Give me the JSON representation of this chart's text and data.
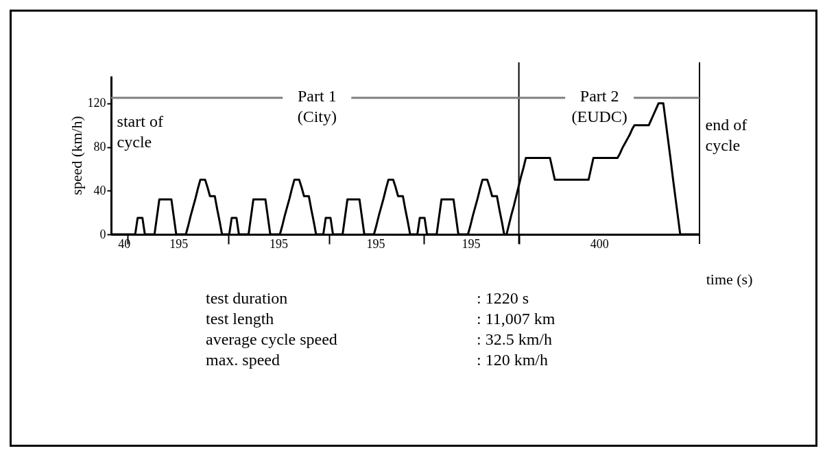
{
  "chart_data": {
    "type": "line",
    "xlabel": "time (s)",
    "ylabel": "speed (km/h)",
    "categories": [
      null,
      null,
      null,
      null,
      null,
      null,
      null,
      null,
      null,
      null,
      null,
      null,
      null,
      null,
      null,
      null,
      null,
      null,
      null,
      null,
      null,
      null,
      null,
      null,
      null,
      null,
      null,
      null,
      null,
      null,
      null,
      null,
      null,
      null,
      null,
      null,
      null,
      null,
      null,
      null,
      null,
      null,
      null,
      null,
      null,
      null,
      null,
      null,
      null,
      null,
      null,
      null,
      null,
      null,
      null,
      null,
      null,
      null,
      null,
      null,
      null,
      null,
      null,
      null,
      null,
      null,
      null,
      null,
      null,
      null,
      null,
      null,
      null,
      null,
      null,
      null,
      null,
      null,
      null,
      null,
      null,
      null,
      null,
      null,
      null,
      null,
      null,
      null,
      null,
      null,
      null,
      null,
      null,
      null,
      null,
      null,
      null,
      null,
      null,
      null,
      null,
      null,
      null,
      null,
      null,
      null,
      null,
      null,
      null,
      null,
      null,
      null,
      null,
      null,
      null,
      null,
      null,
      null,
      null,
      null,
      null,
      null,
      null,
      null,
      null,
      null,
      null,
      null,
      null,
      null,
      null,
      null,
      null,
      null,
      null,
      null,
      null,
      null,
      null,
      null,
      null,
      null,
      null,
      null,
      null,
      null,
      null,
      null,
      null,
      null,
      null,
      null,
      null,
      null,
      null,
      null,
      null,
      null,
      null,
      null,
      null,
      null,
      null,
      null,
      null,
      null,
      null,
      null,
      null,
      null,
      null,
      null,
      null,
      null,
      null,
      null,
      null,
      null,
      null,
      null,
      null,
      null,
      null,
      null,
      null,
      null,
      null,
      null,
      null,
      null,
      null,
      null,
      null,
      null,
      null,
      null,
      null,
      null,
      null,
      null,
      null,
      null,
      null,
      null,
      null,
      null,
      null,
      null,
      null,
      null,
      null,
      null,
      null,
      null,
      null,
      null,
      null,
      null,
      null,
      null,
      null,
      null,
      null,
      null,
      null,
      null,
      null,
      null,
      null,
      null,
      null,
      null,
      null,
      null,
      null,
      null,
      null,
      null,
      null,
      null,
      null,
      null,
      null,
      null,
      null
    ],
    "series": [
      {
        "color": "#000000",
        "values": [
          0,
          0,
          0,
          0,
          0,
          0,
          0,
          0,
          0,
          0,
          0,
          15,
          15,
          15,
          0,
          0,
          0,
          0,
          0,
          16,
          32,
          32,
          32,
          32,
          32,
          32,
          16,
          0,
          0,
          0,
          0,
          0,
          8,
          17,
          25,
          33,
          42,
          50,
          50,
          50,
          43,
          35,
          35,
          35,
          23,
          12,
          0,
          0,
          0,
          0,
          15,
          15,
          15,
          0,
          0,
          0,
          0,
          0,
          16,
          32,
          32,
          32,
          32,
          32,
          32,
          16,
          0,
          0,
          0,
          0,
          0,
          8,
          17,
          25,
          33,
          42,
          50,
          50,
          50,
          43,
          35,
          35,
          35,
          23,
          12,
          0,
          0,
          0,
          0,
          15,
          15,
          15,
          0,
          0,
          0,
          0,
          0,
          16,
          32,
          32,
          32,
          32,
          32,
          32,
          16,
          0,
          0,
          0,
          0,
          0,
          8,
          17,
          25,
          33,
          42,
          50,
          50,
          50,
          43,
          35,
          35,
          35,
          23,
          12,
          0,
          0,
          0,
          0,
          15,
          15,
          15,
          0,
          0,
          0,
          0,
          0,
          16,
          32,
          32,
          32,
          32,
          32,
          32,
          16,
          0,
          0,
          0,
          0,
          0,
          8,
          17,
          25,
          33,
          42,
          50,
          50,
          50,
          43,
          35,
          35,
          35,
          23,
          12,
          0,
          0,
          9,
          18,
          26,
          35,
          44,
          53,
          61,
          70,
          70,
          70,
          70,
          70,
          70,
          70,
          70,
          70,
          70,
          70,
          60,
          50,
          50,
          50,
          50,
          50,
          50,
          50,
          50,
          50,
          50,
          50,
          50,
          50,
          50,
          50,
          60,
          70,
          70,
          70,
          70,
          70,
          70,
          70,
          70,
          70,
          70,
          70,
          74,
          79,
          83,
          87,
          91,
          96,
          100,
          100,
          100,
          100,
          100,
          100,
          100,
          105,
          110,
          115,
          120,
          120,
          120,
          103,
          86,
          69,
          51,
          34,
          17,
          0,
          0,
          0,
          0,
          0,
          0,
          0,
          0,
          0
        ]
      }
    ],
    "ylim": [
      0,
      145
    ],
    "yticks": [
      0,
      40,
      80,
      120
    ],
    "line_style": "solid",
    "ref_lines": [
      {
        "axis": "y",
        "value": 125,
        "color": "#808080"
      }
    ],
    "annotations": [
      "Part 1\n(City)",
      "Part 2\n(EUDC)",
      "start of\ncycle",
      "end of\ncycle",
      "40",
      "195",
      "195",
      "195",
      "195",
      "400",
      "test duration",
      ": 1220 s",
      "test length",
      ": 11,007 km",
      "average cycle speed",
      ": 32.5 km/h",
      "max. speed",
      ": 120 km/h"
    ]
  }
}
